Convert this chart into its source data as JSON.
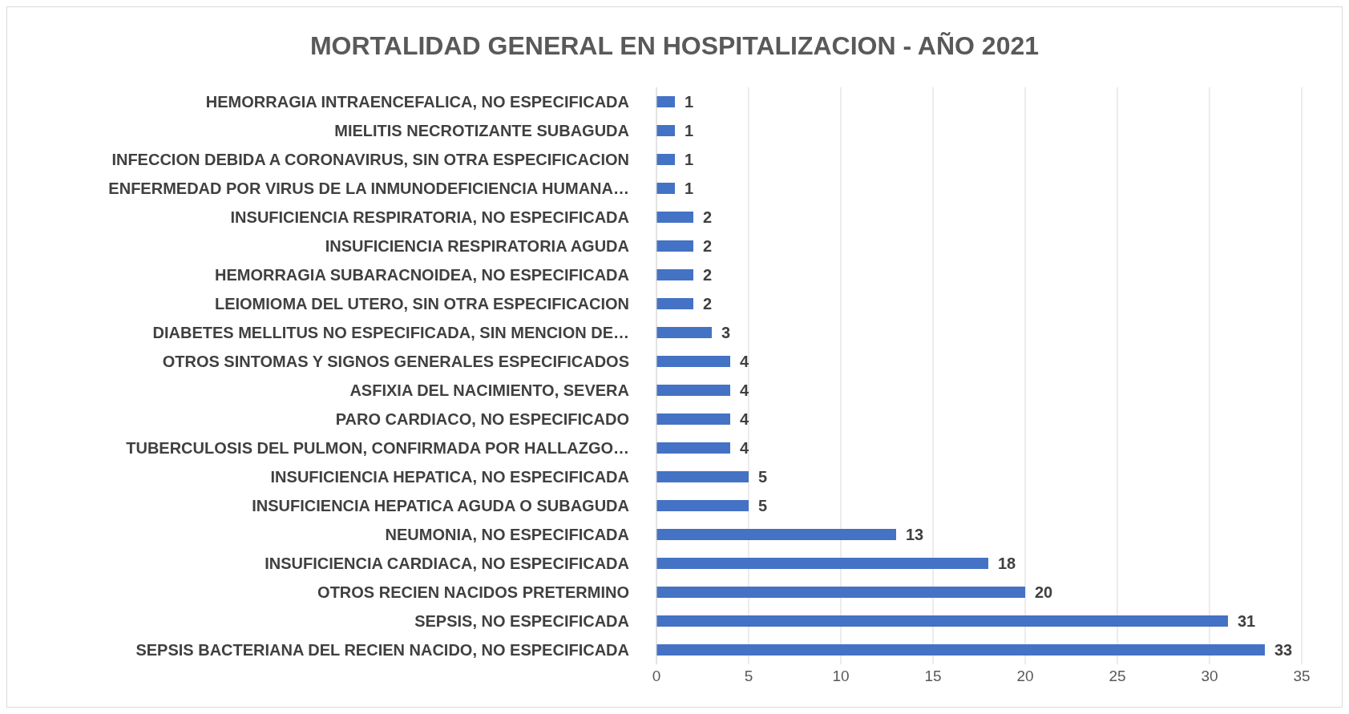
{
  "chart_data": {
    "type": "bar",
    "orientation": "horizontal",
    "title": "MORTALIDAD GENERAL EN HOSPITALIZACION - AÑO 2021",
    "categories": [
      "HEMORRAGIA INTRAENCEFALICA, NO ESPECIFICADA",
      "MIELITIS NECROTIZANTE SUBAGUDA",
      "INFECCION DEBIDA A CORONAVIRUS, SIN OTRA ESPECIFICACION",
      "ENFERMEDAD POR VIRUS DE LA INMUNODEFICIENCIA HUMANA…",
      "INSUFICIENCIA RESPIRATORIA, NO ESPECIFICADA",
      "INSUFICIENCIA RESPIRATORIA AGUDA",
      "HEMORRAGIA SUBARACNOIDEA, NO ESPECIFICADA",
      "LEIOMIOMA DEL UTERO, SIN OTRA ESPECIFICACION",
      "DIABETES MELLITUS NO ESPECIFICADA, SIN MENCION DE…",
      "OTROS SINTOMAS Y SIGNOS GENERALES ESPECIFICADOS",
      "ASFIXIA DEL NACIMIENTO, SEVERA",
      "PARO CARDIACO, NO ESPECIFICADO",
      "TUBERCULOSIS DEL PULMON, CONFIRMADA POR HALLAZGO…",
      "INSUFICIENCIA HEPATICA, NO ESPECIFICADA",
      "INSUFICIENCIA HEPATICA AGUDA O SUBAGUDA",
      "NEUMONIA, NO ESPECIFICADA",
      "INSUFICIENCIA CARDIACA, NO ESPECIFICADA",
      "OTROS RECIEN NACIDOS PRETERMINO",
      "SEPSIS, NO ESPECIFICADA",
      "SEPSIS BACTERIANA DEL RECIEN NACIDO, NO ESPECIFICADA"
    ],
    "values": [
      1,
      1,
      1,
      1,
      2,
      2,
      2,
      2,
      3,
      4,
      4,
      4,
      4,
      5,
      5,
      13,
      18,
      20,
      31,
      33
    ],
    "color": "#4472c4",
    "xlim": [
      0,
      35
    ],
    "xticks": [
      0,
      5,
      10,
      15,
      20,
      25,
      30,
      35
    ],
    "grid": "x",
    "data_labels": true
  }
}
